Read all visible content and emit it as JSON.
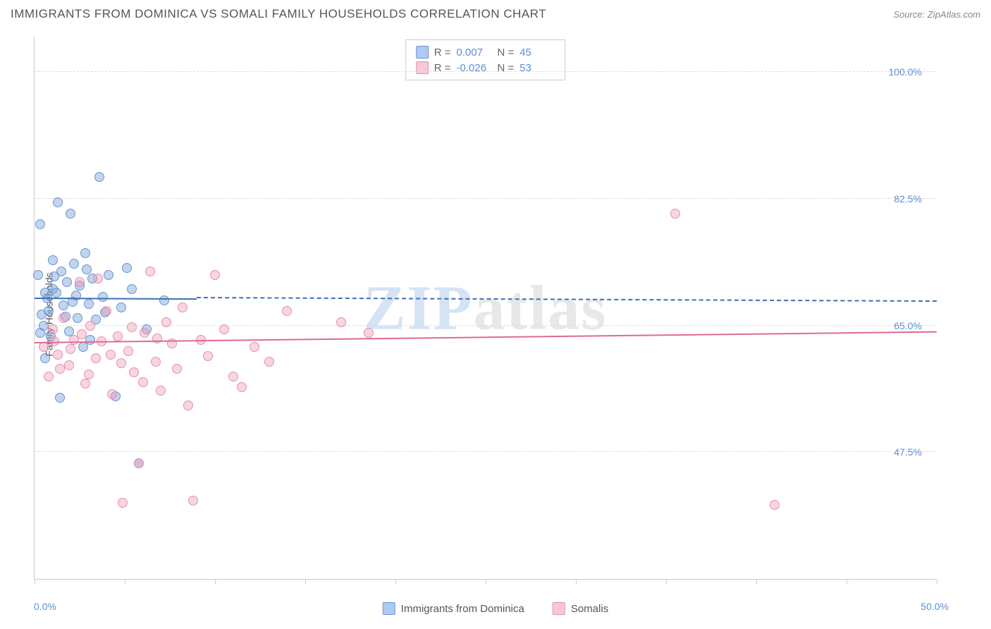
{
  "title": "IMMIGRANTS FROM DOMINICA VS SOMALI FAMILY HOUSEHOLDS CORRELATION CHART",
  "source": "Source: ZipAtlas.com",
  "y_axis_label": "Family Households",
  "watermark_text_a": "ZIP",
  "watermark_text_b": "atlas",
  "chart": {
    "type": "scatter",
    "xlim": [
      0,
      50
    ],
    "ylim": [
      30,
      105
    ],
    "x_tick_labels": {
      "start": "0.0%",
      "end": "50.0%"
    },
    "x_tick_positions": [
      0,
      5,
      10,
      15,
      20,
      25,
      30,
      35,
      40,
      45,
      50
    ],
    "y_ticks": [
      {
        "value": 47.5,
        "label": "47.5%"
      },
      {
        "value": 65.0,
        "label": "65.0%"
      },
      {
        "value": 82.5,
        "label": "82.5%"
      },
      {
        "value": 100.0,
        "label": "100.0%"
      }
    ],
    "grid_color": "#dddddd",
    "background_color": "#ffffff",
    "series": [
      {
        "name": "Immigrants from Dominica",
        "fill_color": "rgba(120,160,220,0.45)",
        "stroke_color": "#6a96d0",
        "swatch_fill": "#aecaf0",
        "swatch_stroke": "#6a96d0",
        "r_value": "0.007",
        "n_value": "45",
        "trend": {
          "y_start": 68.7,
          "y_end": 69.3,
          "solid_until_x": 9,
          "color": "#3f6fb5"
        },
        "points": [
          {
            "x": 0.3,
            "y": 79.0
          },
          {
            "x": 0.5,
            "y": 65.0
          },
          {
            "x": 0.6,
            "y": 60.5
          },
          {
            "x": 0.8,
            "y": 67.0
          },
          {
            "x": 0.9,
            "y": 63.5
          },
          {
            "x": 1.0,
            "y": 70.0
          },
          {
            "x": 1.0,
            "y": 74.0
          },
          {
            "x": 1.2,
            "y": 69.5
          },
          {
            "x": 1.3,
            "y": 82.0
          },
          {
            "x": 1.4,
            "y": 55.0
          },
          {
            "x": 1.5,
            "y": 72.5
          },
          {
            "x": 1.6,
            "y": 67.8
          },
          {
            "x": 1.8,
            "y": 71.0
          },
          {
            "x": 1.9,
            "y": 64.2
          },
          {
            "x": 2.0,
            "y": 80.5
          },
          {
            "x": 2.1,
            "y": 68.3
          },
          {
            "x": 2.2,
            "y": 73.5
          },
          {
            "x": 2.4,
            "y": 66.0
          },
          {
            "x": 2.5,
            "y": 70.5
          },
          {
            "x": 2.7,
            "y": 62.0
          },
          {
            "x": 2.8,
            "y": 75.0
          },
          {
            "x": 3.0,
            "y": 68.0
          },
          {
            "x": 3.2,
            "y": 71.5
          },
          {
            "x": 3.4,
            "y": 65.8
          },
          {
            "x": 3.6,
            "y": 85.5
          },
          {
            "x": 3.8,
            "y": 69.0
          },
          {
            "x": 4.1,
            "y": 72.0
          },
          {
            "x": 4.5,
            "y": 55.2
          },
          {
            "x": 4.8,
            "y": 67.5
          },
          {
            "x": 5.1,
            "y": 73.0
          },
          {
            "x": 5.4,
            "y": 70.0
          },
          {
            "x": 5.8,
            "y": 46.0
          },
          {
            "x": 6.2,
            "y": 64.5
          },
          {
            "x": 7.2,
            "y": 68.5
          },
          {
            "x": 0.4,
            "y": 66.5
          },
          {
            "x": 0.7,
            "y": 68.8
          },
          {
            "x": 1.1,
            "y": 71.8
          },
          {
            "x": 1.7,
            "y": 66.2
          },
          {
            "x": 2.3,
            "y": 69.2
          },
          {
            "x": 2.9,
            "y": 72.8
          },
          {
            "x": 3.1,
            "y": 63.0
          },
          {
            "x": 3.9,
            "y": 66.8
          },
          {
            "x": 0.2,
            "y": 72.0
          },
          {
            "x": 0.3,
            "y": 64.0
          },
          {
            "x": 0.6,
            "y": 69.5
          }
        ]
      },
      {
        "name": "Somalis",
        "fill_color": "rgba(240,150,180,0.40)",
        "stroke_color": "#e390ad",
        "swatch_fill": "#f7c9d8",
        "swatch_stroke": "#e390ad",
        "r_value": "-0.026",
        "n_value": "53",
        "trend": {
          "y_start": 62.5,
          "y_end": 61.0,
          "solid_until_x": 50,
          "color": "#e06a93"
        },
        "points": [
          {
            "x": 0.5,
            "y": 62.0
          },
          {
            "x": 0.8,
            "y": 58.0
          },
          {
            "x": 1.0,
            "y": 64.5
          },
          {
            "x": 1.3,
            "y": 61.0
          },
          {
            "x": 1.6,
            "y": 66.0
          },
          {
            "x": 1.9,
            "y": 59.5
          },
          {
            "x": 2.2,
            "y": 63.0
          },
          {
            "x": 2.5,
            "y": 71.0
          },
          {
            "x": 2.8,
            "y": 57.0
          },
          {
            "x": 3.1,
            "y": 65.0
          },
          {
            "x": 3.4,
            "y": 60.5
          },
          {
            "x": 3.7,
            "y": 62.8
          },
          {
            "x": 4.0,
            "y": 67.0
          },
          {
            "x": 4.3,
            "y": 55.5
          },
          {
            "x": 4.6,
            "y": 63.5
          },
          {
            "x": 4.9,
            "y": 40.5
          },
          {
            "x": 5.2,
            "y": 61.5
          },
          {
            "x": 5.5,
            "y": 58.5
          },
          {
            "x": 5.8,
            "y": 46.0
          },
          {
            "x": 6.1,
            "y": 64.0
          },
          {
            "x": 6.4,
            "y": 72.5
          },
          {
            "x": 6.7,
            "y": 60.0
          },
          {
            "x": 7.0,
            "y": 56.0
          },
          {
            "x": 7.3,
            "y": 65.5
          },
          {
            "x": 7.6,
            "y": 62.5
          },
          {
            "x": 7.9,
            "y": 59.0
          },
          {
            "x": 8.2,
            "y": 67.5
          },
          {
            "x": 8.5,
            "y": 54.0
          },
          {
            "x": 8.8,
            "y": 40.8
          },
          {
            "x": 9.2,
            "y": 63.0
          },
          {
            "x": 9.6,
            "y": 60.8
          },
          {
            "x": 10.0,
            "y": 72.0
          },
          {
            "x": 10.5,
            "y": 64.5
          },
          {
            "x": 11.0,
            "y": 58.0
          },
          {
            "x": 11.5,
            "y": 56.5
          },
          {
            "x": 12.2,
            "y": 62.0
          },
          {
            "x": 13.0,
            "y": 60.0
          },
          {
            "x": 14.0,
            "y": 67.0
          },
          {
            "x": 17.0,
            "y": 65.5
          },
          {
            "x": 18.5,
            "y": 64.0
          },
          {
            "x": 35.5,
            "y": 80.5
          },
          {
            "x": 41.0,
            "y": 40.2
          },
          {
            "x": 1.1,
            "y": 62.8
          },
          {
            "x": 1.4,
            "y": 59.0
          },
          {
            "x": 2.0,
            "y": 61.8
          },
          {
            "x": 2.6,
            "y": 63.8
          },
          {
            "x": 3.0,
            "y": 58.2
          },
          {
            "x": 3.5,
            "y": 71.5
          },
          {
            "x": 4.2,
            "y": 61.0
          },
          {
            "x": 4.8,
            "y": 59.8
          },
          {
            "x": 5.4,
            "y": 64.8
          },
          {
            "x": 6.0,
            "y": 57.2
          },
          {
            "x": 6.8,
            "y": 63.2
          }
        ]
      }
    ]
  },
  "stats_box": {
    "r_label": "R =",
    "n_label": "N ="
  },
  "legend": {
    "series1_label": "Immigrants from Dominica",
    "series2_label": "Somalis"
  }
}
